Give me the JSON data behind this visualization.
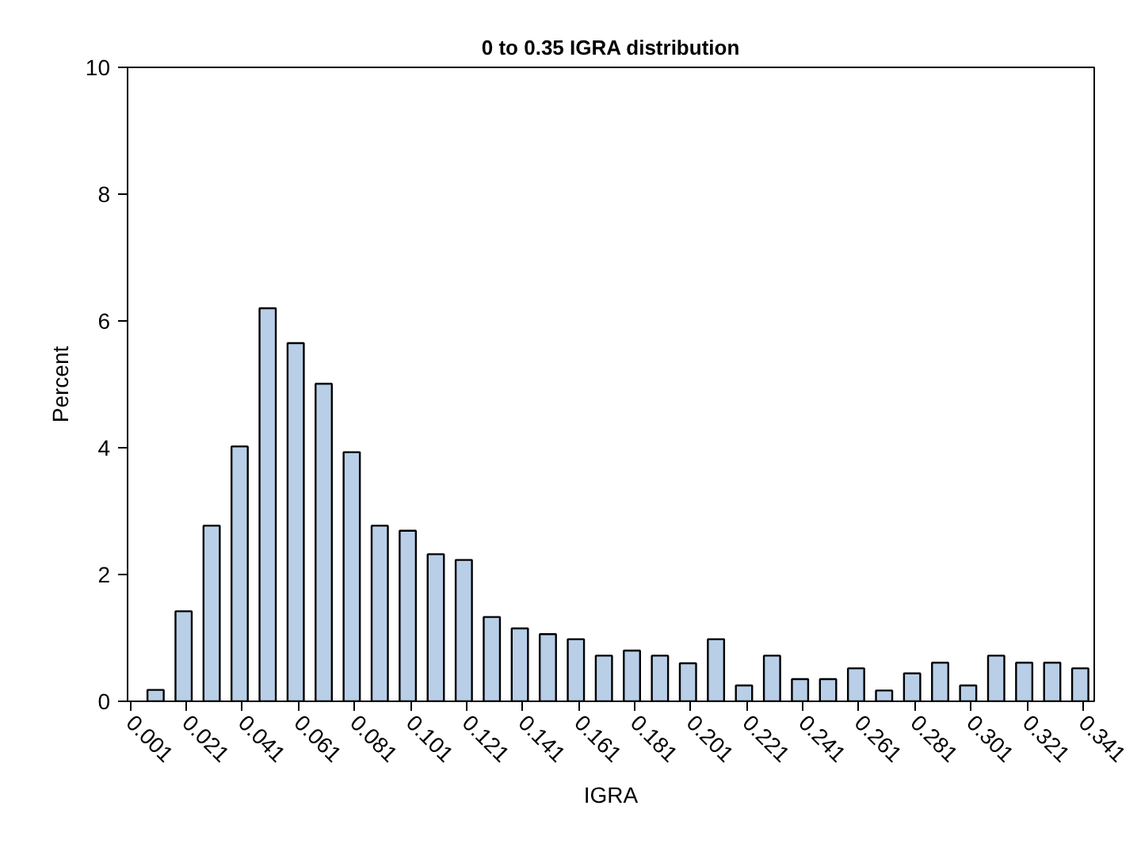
{
  "chart_data": {
    "type": "histogram",
    "title": "0 to 0.35 IGRA distribution",
    "xlabel": "IGRA",
    "ylabel": "Percent",
    "bins": [
      0.005,
      0.015,
      0.025,
      0.035,
      0.045,
      0.055,
      0.065,
      0.075,
      0.085,
      0.095,
      0.105,
      0.115,
      0.125,
      0.135,
      0.145,
      0.155,
      0.165,
      0.175,
      0.185,
      0.195,
      0.205,
      0.215,
      0.225,
      0.235,
      0.245,
      0.255,
      0.265,
      0.275,
      0.285,
      0.295,
      0.305,
      0.315,
      0.325,
      0.335,
      0.345
    ],
    "values": [
      0.18,
      1.42,
      2.77,
      4.02,
      6.2,
      5.65,
      5.01,
      3.93,
      2.77,
      2.69,
      2.32,
      2.23,
      1.33,
      1.15,
      1.06,
      0.98,
      0.72,
      0.8,
      0.72,
      0.6,
      0.98,
      0.25,
      0.72,
      0.35,
      0.35,
      0.52,
      0.17,
      0.44,
      0.61,
      0.25,
      0.72,
      0.61,
      0.61,
      0.52
    ],
    "color": "#b9cfe8",
    "xlim": [
      0.0,
      0.345
    ],
    "xticks": [
      0.001,
      0.021,
      0.041,
      0.061,
      0.081,
      0.101,
      0.121,
      0.141,
      0.161,
      0.181,
      0.201,
      0.221,
      0.241,
      0.261,
      0.281,
      0.301,
      0.321,
      0.341
    ],
    "ylim": [
      0,
      10
    ],
    "yticks": [
      0,
      2,
      4,
      6,
      8,
      10
    ],
    "grid": false
  }
}
